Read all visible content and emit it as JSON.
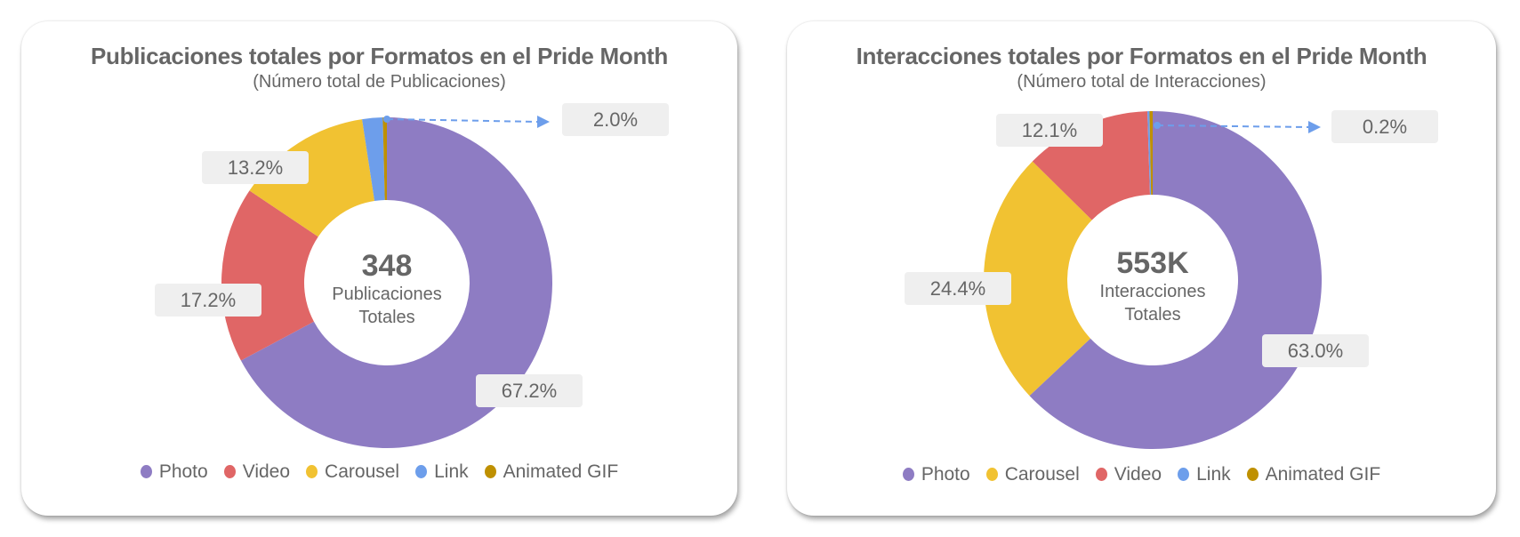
{
  "colors": {
    "Photo": "#8e7cc3",
    "Video": "#e06666",
    "Carousel": "#f1c232",
    "Link": "#6d9eeb",
    "Animated GIF": "#bf9000",
    "label_bg": "#efefef",
    "text": "#666666"
  },
  "chart_data": [
    {
      "type": "pie",
      "title": "Publicaciones totales por Formatos en el Pride  Month",
      "subtitle": "(Número total de Publicaciones)",
      "center_value": "348",
      "center_label_1": "Publicaciones",
      "center_label_2": "Totales",
      "slices": [
        {
          "name": "Photo",
          "value": 67.2,
          "label": "67.2%"
        },
        {
          "name": "Video",
          "value": 17.2,
          "label": "17.2%"
        },
        {
          "name": "Carousel",
          "value": 13.2,
          "label": "13.2%"
        },
        {
          "name": "Link",
          "value": 2.0,
          "label": "2.0%"
        },
        {
          "name": "Animated GIF",
          "value": 0.4
        }
      ],
      "legend": [
        "Photo",
        "Video",
        "Carousel",
        "Link",
        "Animated GIF"
      ],
      "legend_position": "bottom"
    },
    {
      "type": "pie",
      "title": "Interacciones totales por Formatos en el Pride  Month",
      "subtitle": "(Número total de Interacciones)",
      "center_value": "553K",
      "center_label_1": "Interacciones",
      "center_label_2": "Totales",
      "slices": [
        {
          "name": "Photo",
          "value": 63.0,
          "label": "63.0%"
        },
        {
          "name": "Carousel",
          "value": 24.4,
          "label": "24.4%"
        },
        {
          "name": "Video",
          "value": 12.1,
          "label": "12.1%"
        },
        {
          "name": "Link",
          "value": 0.2,
          "label": "0.2%"
        },
        {
          "name": "Animated GIF",
          "value": 0.3
        }
      ],
      "legend": [
        "Photo",
        "Carousel",
        "Video",
        "Link",
        "Animated GIF"
      ],
      "legend_position": "bottom"
    }
  ]
}
